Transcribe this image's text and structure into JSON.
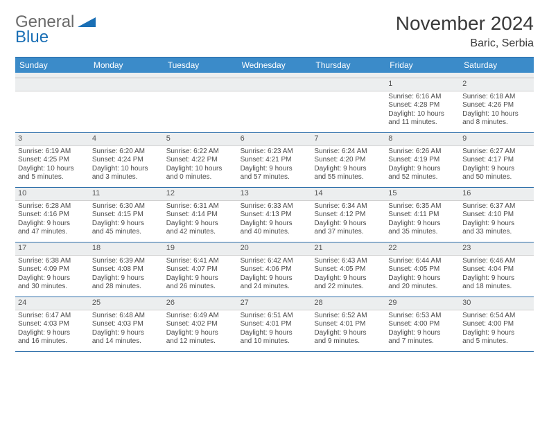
{
  "brand": {
    "general": "General",
    "blue": "Blue"
  },
  "title": "November 2024",
  "location": "Baric, Serbia",
  "colors": {
    "header_bg": "#3b8bc9",
    "header_text": "#ffffff",
    "rule": "#2a6ca8",
    "daynum_bg": "#eceeef",
    "body_text": "#4a4a4a",
    "logo_gray": "#6a6a6a",
    "logo_blue": "#1a6fb5"
  },
  "typography": {
    "title_fontsize": 28,
    "location_fontsize": 16,
    "dow_fontsize": 12,
    "daynum_fontsize": 11,
    "cell_fontsize": 10
  },
  "dow": [
    "Sunday",
    "Monday",
    "Tuesday",
    "Wednesday",
    "Thursday",
    "Friday",
    "Saturday"
  ],
  "weeks": [
    [
      null,
      null,
      null,
      null,
      null,
      {
        "n": "1",
        "sr": "Sunrise: 6:16 AM",
        "ss": "Sunset: 4:28 PM",
        "dl1": "Daylight: 10 hours",
        "dl2": "and 11 minutes."
      },
      {
        "n": "2",
        "sr": "Sunrise: 6:18 AM",
        "ss": "Sunset: 4:26 PM",
        "dl1": "Daylight: 10 hours",
        "dl2": "and 8 minutes."
      }
    ],
    [
      {
        "n": "3",
        "sr": "Sunrise: 6:19 AM",
        "ss": "Sunset: 4:25 PM",
        "dl1": "Daylight: 10 hours",
        "dl2": "and 5 minutes."
      },
      {
        "n": "4",
        "sr": "Sunrise: 6:20 AM",
        "ss": "Sunset: 4:24 PM",
        "dl1": "Daylight: 10 hours",
        "dl2": "and 3 minutes."
      },
      {
        "n": "5",
        "sr": "Sunrise: 6:22 AM",
        "ss": "Sunset: 4:22 PM",
        "dl1": "Daylight: 10 hours",
        "dl2": "and 0 minutes."
      },
      {
        "n": "6",
        "sr": "Sunrise: 6:23 AM",
        "ss": "Sunset: 4:21 PM",
        "dl1": "Daylight: 9 hours",
        "dl2": "and 57 minutes."
      },
      {
        "n": "7",
        "sr": "Sunrise: 6:24 AM",
        "ss": "Sunset: 4:20 PM",
        "dl1": "Daylight: 9 hours",
        "dl2": "and 55 minutes."
      },
      {
        "n": "8",
        "sr": "Sunrise: 6:26 AM",
        "ss": "Sunset: 4:19 PM",
        "dl1": "Daylight: 9 hours",
        "dl2": "and 52 minutes."
      },
      {
        "n": "9",
        "sr": "Sunrise: 6:27 AM",
        "ss": "Sunset: 4:17 PM",
        "dl1": "Daylight: 9 hours",
        "dl2": "and 50 minutes."
      }
    ],
    [
      {
        "n": "10",
        "sr": "Sunrise: 6:28 AM",
        "ss": "Sunset: 4:16 PM",
        "dl1": "Daylight: 9 hours",
        "dl2": "and 47 minutes."
      },
      {
        "n": "11",
        "sr": "Sunrise: 6:30 AM",
        "ss": "Sunset: 4:15 PM",
        "dl1": "Daylight: 9 hours",
        "dl2": "and 45 minutes."
      },
      {
        "n": "12",
        "sr": "Sunrise: 6:31 AM",
        "ss": "Sunset: 4:14 PM",
        "dl1": "Daylight: 9 hours",
        "dl2": "and 42 minutes."
      },
      {
        "n": "13",
        "sr": "Sunrise: 6:33 AM",
        "ss": "Sunset: 4:13 PM",
        "dl1": "Daylight: 9 hours",
        "dl2": "and 40 minutes."
      },
      {
        "n": "14",
        "sr": "Sunrise: 6:34 AM",
        "ss": "Sunset: 4:12 PM",
        "dl1": "Daylight: 9 hours",
        "dl2": "and 37 minutes."
      },
      {
        "n": "15",
        "sr": "Sunrise: 6:35 AM",
        "ss": "Sunset: 4:11 PM",
        "dl1": "Daylight: 9 hours",
        "dl2": "and 35 minutes."
      },
      {
        "n": "16",
        "sr": "Sunrise: 6:37 AM",
        "ss": "Sunset: 4:10 PM",
        "dl1": "Daylight: 9 hours",
        "dl2": "and 33 minutes."
      }
    ],
    [
      {
        "n": "17",
        "sr": "Sunrise: 6:38 AM",
        "ss": "Sunset: 4:09 PM",
        "dl1": "Daylight: 9 hours",
        "dl2": "and 30 minutes."
      },
      {
        "n": "18",
        "sr": "Sunrise: 6:39 AM",
        "ss": "Sunset: 4:08 PM",
        "dl1": "Daylight: 9 hours",
        "dl2": "and 28 minutes."
      },
      {
        "n": "19",
        "sr": "Sunrise: 6:41 AM",
        "ss": "Sunset: 4:07 PM",
        "dl1": "Daylight: 9 hours",
        "dl2": "and 26 minutes."
      },
      {
        "n": "20",
        "sr": "Sunrise: 6:42 AM",
        "ss": "Sunset: 4:06 PM",
        "dl1": "Daylight: 9 hours",
        "dl2": "and 24 minutes."
      },
      {
        "n": "21",
        "sr": "Sunrise: 6:43 AM",
        "ss": "Sunset: 4:05 PM",
        "dl1": "Daylight: 9 hours",
        "dl2": "and 22 minutes."
      },
      {
        "n": "22",
        "sr": "Sunrise: 6:44 AM",
        "ss": "Sunset: 4:05 PM",
        "dl1": "Daylight: 9 hours",
        "dl2": "and 20 minutes."
      },
      {
        "n": "23",
        "sr": "Sunrise: 6:46 AM",
        "ss": "Sunset: 4:04 PM",
        "dl1": "Daylight: 9 hours",
        "dl2": "and 18 minutes."
      }
    ],
    [
      {
        "n": "24",
        "sr": "Sunrise: 6:47 AM",
        "ss": "Sunset: 4:03 PM",
        "dl1": "Daylight: 9 hours",
        "dl2": "and 16 minutes."
      },
      {
        "n": "25",
        "sr": "Sunrise: 6:48 AM",
        "ss": "Sunset: 4:03 PM",
        "dl1": "Daylight: 9 hours",
        "dl2": "and 14 minutes."
      },
      {
        "n": "26",
        "sr": "Sunrise: 6:49 AM",
        "ss": "Sunset: 4:02 PM",
        "dl1": "Daylight: 9 hours",
        "dl2": "and 12 minutes."
      },
      {
        "n": "27",
        "sr": "Sunrise: 6:51 AM",
        "ss": "Sunset: 4:01 PM",
        "dl1": "Daylight: 9 hours",
        "dl2": "and 10 minutes."
      },
      {
        "n": "28",
        "sr": "Sunrise: 6:52 AM",
        "ss": "Sunset: 4:01 PM",
        "dl1": "Daylight: 9 hours",
        "dl2": "and 9 minutes."
      },
      {
        "n": "29",
        "sr": "Sunrise: 6:53 AM",
        "ss": "Sunset: 4:00 PM",
        "dl1": "Daylight: 9 hours",
        "dl2": "and 7 minutes."
      },
      {
        "n": "30",
        "sr": "Sunrise: 6:54 AM",
        "ss": "Sunset: 4:00 PM",
        "dl1": "Daylight: 9 hours",
        "dl2": "and 5 minutes."
      }
    ]
  ]
}
